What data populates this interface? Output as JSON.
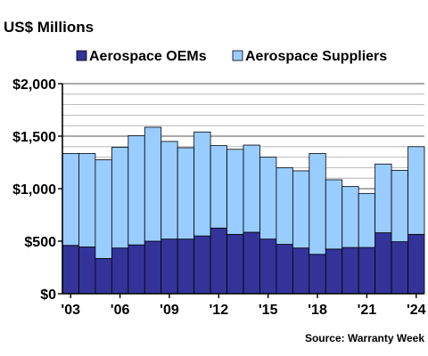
{
  "chart_data": {
    "type": "bar",
    "stacked": true,
    "ylabel": "US$ Millions",
    "source": "Source: Warranty Week",
    "legend_position": "top",
    "ylim": [
      0,
      2000
    ],
    "yticks": [
      0,
      500,
      1000,
      1500,
      2000
    ],
    "ytick_labels": [
      "$0",
      "$500",
      "$1,000",
      "$1,500",
      "$2,000"
    ],
    "xtick_labels": [
      {
        "index": 0,
        "label": "'03"
      },
      {
        "index": 3,
        "label": "'06"
      },
      {
        "index": 6,
        "label": "'09"
      },
      {
        "index": 9,
        "label": "'12"
      },
      {
        "index": 12,
        "label": "'15"
      },
      {
        "index": 15,
        "label": "'18"
      },
      {
        "index": 18,
        "label": "'21"
      },
      {
        "index": 21,
        "label": "'24"
      }
    ],
    "categories": [
      "2003",
      "2004",
      "2005",
      "2006",
      "2007",
      "2008",
      "2009",
      "2010",
      "2011",
      "2012",
      "2013",
      "2014",
      "2015",
      "2016",
      "2017",
      "2018",
      "2019",
      "2020",
      "2021",
      "2022",
      "2023",
      "2024"
    ],
    "series": [
      {
        "name": "Aerospace OEMs",
        "color": "#333399",
        "values": [
          460,
          445,
          335,
          435,
          465,
          500,
          520,
          520,
          550,
          625,
          565,
          585,
          520,
          470,
          435,
          375,
          425,
          440,
          440,
          580,
          495,
          565
        ]
      },
      {
        "name": "Aerospace Suppliers",
        "color": "#99ccff",
        "values": [
          875,
          890,
          940,
          960,
          1040,
          1085,
          930,
          870,
          990,
          785,
          810,
          830,
          780,
          730,
          735,
          960,
          660,
          580,
          515,
          655,
          680,
          835
        ]
      }
    ],
    "grid": true
  }
}
